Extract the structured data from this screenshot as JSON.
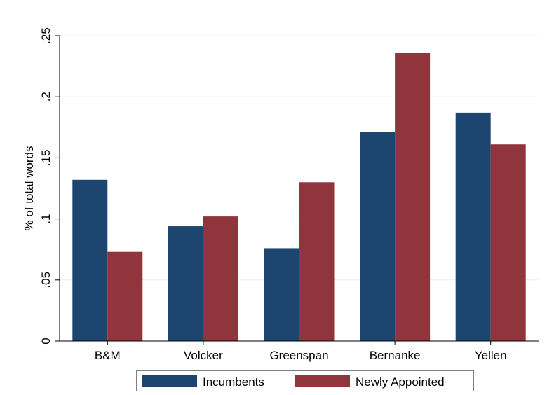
{
  "chart_data": {
    "type": "bar",
    "categories": [
      "B&M",
      "Volcker",
      "Greenspan",
      "Bernanke",
      "Yellen"
    ],
    "series": [
      {
        "name": "Incumbents",
        "color": "#1c4670",
        "values": [
          0.132,
          0.094,
          0.076,
          0.171,
          0.187
        ]
      },
      {
        "name": "Newly Appointed",
        "color": "#90353b",
        "values": [
          0.073,
          0.102,
          0.13,
          0.236,
          0.161
        ]
      }
    ],
    "ylabel": "% of total words",
    "xlabel": "",
    "ylim": [
      0,
      0.25
    ],
    "yticks": [
      0,
      0.05,
      0.1,
      0.15,
      0.2,
      0.25
    ],
    "ytick_labels": [
      "0",
      ".05",
      ".1",
      ".15",
      ".2",
      ".25"
    ],
    "grid": true,
    "legend_position": "bottom-center"
  }
}
